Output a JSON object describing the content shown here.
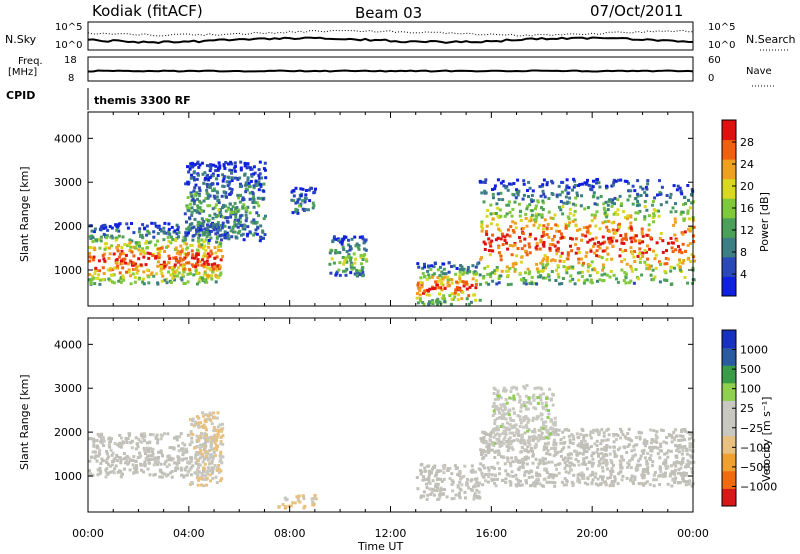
{
  "header": {
    "station": "Kodiak (fitACF)",
    "beam": "Beam 03",
    "date": "07/Oct/2011"
  },
  "noise_panel": {
    "left_label": "N.Sky",
    "right_label": "N.Search",
    "tick_top": "10^5",
    "tick_bottom": "10^0",
    "right_tick_top": "10^5",
    "right_tick_bottom": "10^0"
  },
  "freq_panel": {
    "left_label_1": "Freq.",
    "left_label_2": "[MHz]",
    "right_label": "Nave",
    "left_ticks": [
      "18",
      "8"
    ],
    "right_ticks": [
      "60",
      "0"
    ]
  },
  "cpid_panel": {
    "label": "CPID",
    "text": "themis 3300 RF"
  },
  "x_axis": {
    "title": "Time UT",
    "ticks": [
      "00:00",
      "04:00",
      "08:00",
      "12:00",
      "16:00",
      "20:00",
      "00:00"
    ]
  },
  "colors": {
    "power_scale": [
      "#1020e0",
      "#2a48b8",
      "#3d7d84",
      "#4aa058",
      "#7ec83a",
      "#d8d820",
      "#f0a020",
      "#f06010",
      "#e01010"
    ],
    "velocity_scale": [
      "#d81818",
      "#f06a10",
      "#f0a030",
      "#e8c080",
      "#c8c8c0",
      "#c8c8c0",
      "#90d050",
      "#3a9c48",
      "#2a5aa0",
      "#1830c0"
    ],
    "ground_scatter": "#c0c0b8"
  },
  "chart_data": [
    {
      "type": "heatmap",
      "title": "",
      "xlabel": "",
      "ylabel": "Slant Range [km]",
      "x_range_hours_ut": [
        0,
        24
      ],
      "y_range": [
        180,
        4600
      ],
      "y_ticks": [
        "1000",
        "2000",
        "3000",
        "4000"
      ],
      "colorbar": {
        "label": "Power [dB]",
        "ticks": [
          "28",
          "24",
          "20",
          "16",
          "12",
          "8",
          "4"
        ],
        "range": [
          0,
          30
        ]
      },
      "echo_regions": [
        {
          "t_start": 0.0,
          "t_end": 5.3,
          "range_low_km": 700,
          "range_high_km": 2100,
          "peak_power_db": 28
        },
        {
          "t_start": 3.8,
          "t_end": 7.0,
          "range_low_km": 1700,
          "range_high_km": 3500,
          "peak_power_db": 12
        },
        {
          "t_start": 8.0,
          "t_end": 9.0,
          "range_low_km": 2300,
          "range_high_km": 2900,
          "peak_power_db": 10
        },
        {
          "t_start": 9.5,
          "t_end": 11.0,
          "range_low_km": 900,
          "range_high_km": 1800,
          "peak_power_db": 16
        },
        {
          "t_start": 13.0,
          "t_end": 15.5,
          "range_low_km": 250,
          "range_high_km": 1200,
          "peak_power_db": 28
        },
        {
          "t_start": 15.5,
          "t_end": 24.0,
          "range_low_km": 700,
          "range_high_km": 3100,
          "peak_power_db": 28
        }
      ]
    },
    {
      "type": "heatmap",
      "title": "",
      "xlabel": "Time UT",
      "ylabel": "Slant Range [km]",
      "x_range_hours_ut": [
        0,
        24
      ],
      "y_range": [
        180,
        4600
      ],
      "y_ticks": [
        "1000",
        "2000",
        "3000",
        "4000"
      ],
      "colorbar": {
        "label": "Velocity [m s⁻¹]",
        "ticks": [
          "1000",
          "500",
          "100",
          "25",
          "−25",
          "−100",
          "−500",
          "−1000"
        ],
        "range": [
          -1500,
          1500
        ]
      },
      "echo_regions": [
        {
          "t_start": 0.0,
          "t_end": 5.0,
          "range_low_km": 1000,
          "range_high_km": 2000,
          "velocity_ms": 0
        },
        {
          "t_start": 4.0,
          "t_end": 5.3,
          "range_low_km": 800,
          "range_high_km": 2500,
          "velocity_ms": -300
        },
        {
          "t_start": 7.5,
          "t_end": 9.0,
          "range_low_km": 300,
          "range_high_km": 600,
          "velocity_ms": -400
        },
        {
          "t_start": 13.0,
          "t_end": 15.5,
          "range_low_km": 500,
          "range_high_km": 1300,
          "velocity_ms": 0
        },
        {
          "t_start": 15.5,
          "t_end": 24.0,
          "range_low_km": 800,
          "range_high_km": 2100,
          "velocity_ms": 0
        },
        {
          "t_start": 16.0,
          "t_end": 18.5,
          "range_low_km": 1700,
          "range_high_km": 3100,
          "velocity_ms": 100
        }
      ]
    }
  ]
}
